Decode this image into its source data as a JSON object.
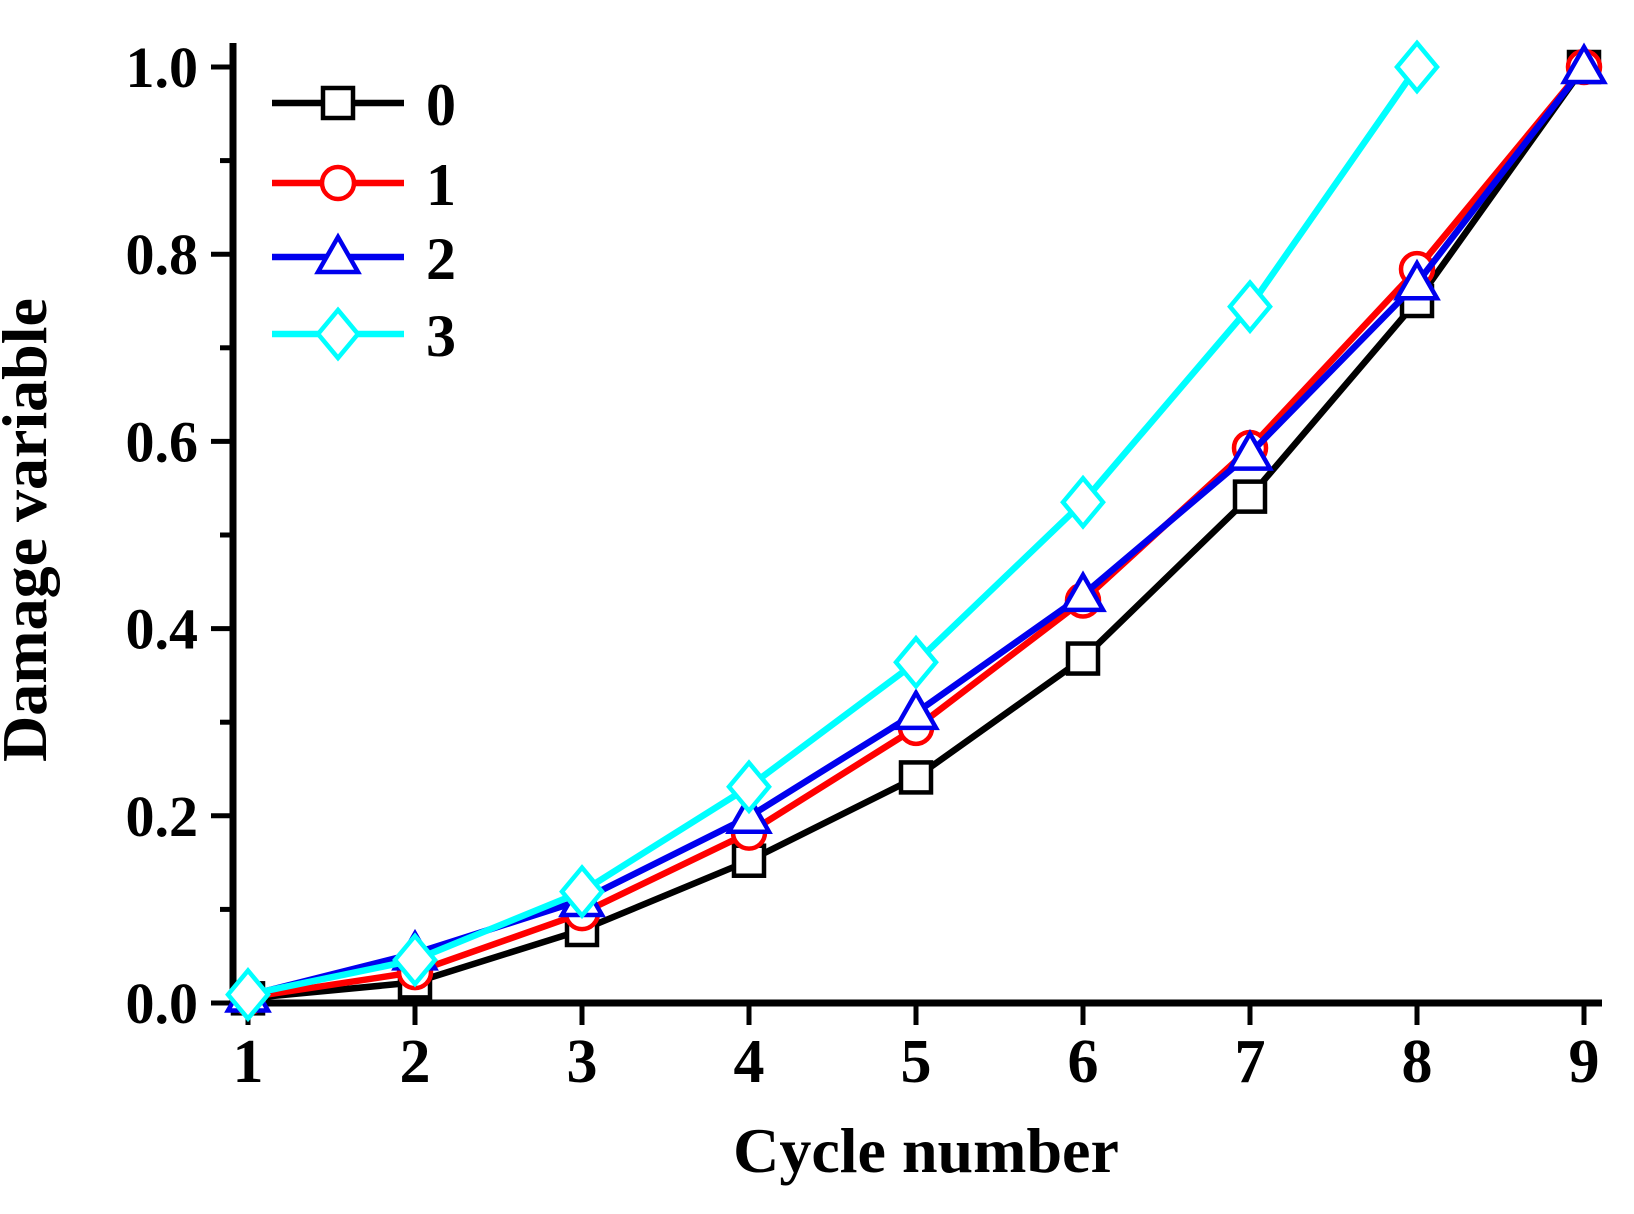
{
  "chart_data": {
    "type": "line",
    "title": "",
    "xlabel": "Cycle number",
    "ylabel": "Damage variable",
    "xlim": [
      1,
      9
    ],
    "ylim": [
      0.0,
      1.0
    ],
    "x_ticks": [
      "1",
      "2",
      "3",
      "4",
      "5",
      "6",
      "7",
      "8",
      "9"
    ],
    "y_ticks": [
      "0.0",
      "0.2",
      "0.4",
      "0.6",
      "0.8",
      "1.0"
    ],
    "y_major_step": 0.2,
    "y_minor_step": 0.1,
    "grid": false,
    "legend_position": "top-left",
    "colors": {
      "background": "#FFFFFF",
      "axis": "#000000",
      "marker_fill": "#FFFFFF"
    },
    "series": [
      {
        "name": "0",
        "color": "#000000",
        "marker": "square",
        "x": [
          1,
          2,
          3,
          4,
          5,
          6,
          7,
          8,
          9
        ],
        "values": [
          0.005,
          0.022,
          0.078,
          0.152,
          0.241,
          0.368,
          0.541,
          0.75,
          1.0
        ]
      },
      {
        "name": "1",
        "color": "#FF0000",
        "marker": "circle",
        "x": [
          1,
          2,
          3,
          4,
          5,
          6,
          7,
          8,
          9
        ],
        "values": [
          0.006,
          0.033,
          0.096,
          0.182,
          0.294,
          0.43,
          0.593,
          0.784,
          1.0
        ]
      },
      {
        "name": "2",
        "color": "#0000EE",
        "marker": "triangle",
        "x": [
          1,
          2,
          3,
          4,
          5,
          6,
          7,
          8,
          9
        ],
        "values": [
          0.008,
          0.053,
          0.11,
          0.199,
          0.31,
          0.436,
          0.587,
          0.769,
          1.0
        ]
      },
      {
        "name": "3",
        "color": "#00FFFF",
        "marker": "diamond",
        "x": [
          1,
          2,
          3,
          4,
          5,
          6,
          7,
          8
        ],
        "values": [
          0.009,
          0.046,
          0.119,
          0.231,
          0.364,
          0.535,
          0.744,
          1.0
        ]
      }
    ]
  }
}
